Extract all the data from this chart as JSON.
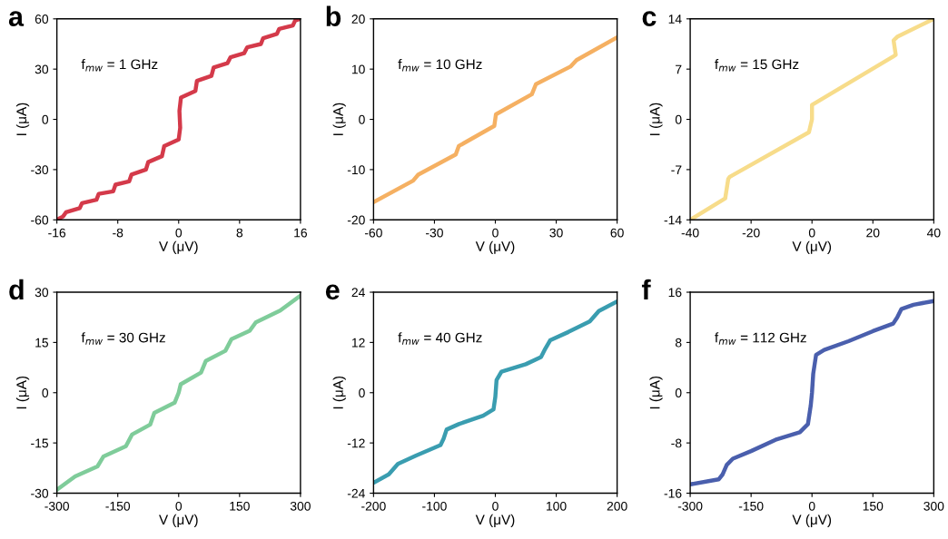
{
  "chart_data": [
    {
      "type": "line",
      "title": "a",
      "xlabel": "V (μV)",
      "ylabel": "I (μA)",
      "annotations": [
        "f$_{mw}$ = 1 GHz"
      ],
      "xlim": [
        -16,
        16
      ],
      "xticks": [
        -16,
        -8,
        0,
        8,
        16
      ],
      "ylim": [
        -60,
        60
      ],
      "yticks": [
        -60,
        -30,
        0,
        30,
        60
      ],
      "grid": false,
      "legend": false,
      "series": [
        {
          "color": "#d43a4a",
          "x": [
            -16,
            -15.2,
            -14.8,
            -13,
            -12.7,
            -10.8,
            -10.5,
            -8.6,
            -8.3,
            -6.5,
            -6.2,
            -4.3,
            -4.0,
            -2.2,
            -1.9,
            0,
            0.2,
            0.1,
            0.3,
            2.2,
            2.4,
            4.3,
            4.6,
            6.4,
            6.8,
            8.6,
            9.0,
            10.8,
            11.1,
            12.9,
            13.2,
            15,
            15.3,
            16
          ],
          "values": [
            -60,
            -58,
            -55.5,
            -53,
            -50,
            -48,
            -44.5,
            -43,
            -39,
            -37,
            -33,
            -30,
            -25.5,
            -22,
            -16,
            -12,
            -5,
            5,
            13,
            17,
            23,
            26,
            31,
            33.5,
            37,
            39.5,
            43,
            45,
            48.5,
            51,
            54,
            56,
            59,
            60
          ]
        }
      ]
    },
    {
      "type": "line",
      "title": "b",
      "xlabel": "V (μV)",
      "ylabel": "I (μA)",
      "annotations": [
        "f$_{mw}$ = 10 GHz"
      ],
      "xlim": [
        -60,
        60
      ],
      "xticks": [
        -60,
        -30,
        0,
        30,
        60
      ],
      "ylim": [
        -20,
        20
      ],
      "yticks": [
        -20,
        -10,
        0,
        10,
        20
      ],
      "grid": false,
      "legend": false,
      "series": [
        {
          "color": "#f5b062",
          "x": [
            -60,
            -40.5,
            -38,
            -19.5,
            -18,
            -0.5,
            0.3,
            18,
            20,
            37,
            40,
            60
          ],
          "values": [
            -16.5,
            -12.2,
            -11,
            -7,
            -5.3,
            -1.3,
            1,
            5,
            7,
            10.5,
            11.8,
            16.3
          ]
        }
      ]
    },
    {
      "type": "line",
      "title": "c",
      "xlabel": "V (μV)",
      "ylabel": "I (μA)",
      "annotations": [
        "f$_{mw}$ = 15 GHz"
      ],
      "xlim": [
        -40,
        40
      ],
      "xticks": [
        -40,
        -20,
        0,
        20,
        40
      ],
      "ylim": [
        -14,
        14
      ],
      "yticks": [
        -14,
        -7,
        0,
        7,
        14
      ],
      "grid": false,
      "legend": false,
      "series": [
        {
          "color": "#f7dc8a",
          "x": [
            -40,
            -28.5,
            -27.5,
            -27,
            -1,
            0,
            0,
            26.5,
            27.5,
            26.8,
            28,
            40
          ],
          "values": [
            -14,
            -11,
            -8.3,
            -8,
            -1.8,
            0,
            2,
            8.7,
            9,
            11,
            11.5,
            14
          ]
        }
      ]
    },
    {
      "type": "line",
      "title": "d",
      "xlabel": "V (μV)",
      "ylabel": "I (μA)",
      "annotations": [
        "f$_{mw}$ = 30 GHz"
      ],
      "xlim": [
        -300,
        300
      ],
      "xticks": [
        -300,
        -150,
        0,
        150,
        300
      ],
      "ylim": [
        -30,
        30
      ],
      "yticks": [
        -30,
        -15,
        0,
        15,
        30
      ],
      "grid": false,
      "legend": false,
      "series": [
        {
          "color": "#7fcc9a",
          "x": [
            -300,
            -255,
            -200,
            -185,
            -130,
            -115,
            -70,
            -60,
            -10,
            0,
            5,
            55,
            67,
            115,
            130,
            175,
            190,
            250,
            300
          ],
          "values": [
            -29,
            -25,
            -22,
            -19,
            -16,
            -12.5,
            -9.5,
            -6,
            -3,
            0,
            2.5,
            6,
            9.5,
            12.5,
            16,
            18.5,
            21,
            24.5,
            29
          ]
        }
      ]
    },
    {
      "type": "line",
      "title": "e",
      "xlabel": "V (μV)",
      "ylabel": "I (μA)",
      "annotations": [
        "f$_{mw}$ = 40 GHz"
      ],
      "xlim": [
        -200,
        200
      ],
      "xticks": [
        -200,
        -100,
        0,
        100,
        200
      ],
      "ylim": [
        -24,
        24
      ],
      "yticks": [
        -24,
        -12,
        0,
        12,
        24
      ],
      "grid": false,
      "legend": false,
      "series": [
        {
          "color": "#3a9db0",
          "x": [
            -200,
            -175,
            -160,
            -130,
            -90,
            -85,
            -80,
            -60,
            -20,
            -3,
            0,
            2,
            10,
            50,
            75,
            82,
            90,
            120,
            155,
            170,
            200
          ],
          "values": [
            -21.5,
            -19.5,
            -17,
            -15,
            -12.5,
            -11,
            -8.8,
            -7.5,
            -5.5,
            -4,
            -1,
            3,
            5,
            6.8,
            8.5,
            10.5,
            12.5,
            14.5,
            17,
            19.5,
            21.8
          ]
        }
      ]
    },
    {
      "type": "line",
      "title": "f",
      "xlabel": "V (μV)",
      "ylabel": "I (μA)",
      "annotations": [
        "f$_{mw}$ = 112 GHz"
      ],
      "xlim": [
        -300,
        300
      ],
      "xticks": [
        -300,
        -150,
        0,
        150,
        300
      ],
      "ylim": [
        -16,
        16
      ],
      "yticks": [
        -16,
        -8,
        0,
        8,
        16
      ],
      "grid": false,
      "legend": false,
      "series": [
        {
          "color": "#4a5fad",
          "x": [
            -300,
            -230,
            -220,
            -210,
            -195,
            -150,
            -90,
            -30,
            -10,
            -3,
            0,
            3,
            10,
            30,
            90,
            150,
            200,
            210,
            220,
            250,
            300
          ],
          "values": [
            -14.6,
            -13.8,
            -13,
            -11.5,
            -10.5,
            -9.3,
            -7.5,
            -6.3,
            -5,
            -2,
            0,
            3,
            6,
            6.8,
            8.2,
            9.8,
            11,
            12,
            13.3,
            14,
            14.6
          ]
        }
      ]
    }
  ]
}
